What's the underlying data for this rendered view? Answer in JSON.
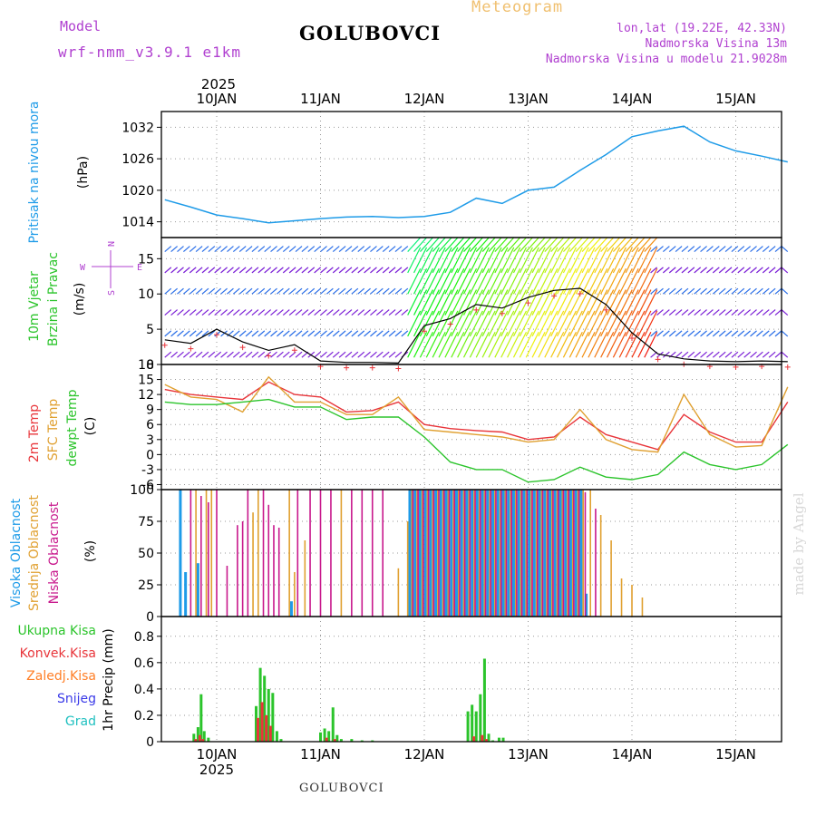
{
  "header": {
    "model_label": "Model",
    "model_name": "wrf-nmm_v3.9.1 e1km",
    "app_title": "Meteogram",
    "station": "GOLUBOVCI",
    "coords": "lon,lat (19.22E, 42.33N)",
    "elevation": "Nadmorska Visina 13m",
    "model_elevation": "Nadmorska Visina u modelu 21.9028m",
    "watermark": "made by Angel"
  },
  "colors": {
    "pressure": "#1e9be8",
    "temp2m": "#e8353a",
    "sfc": "#e0a030",
    "dewpt": "#2bc42b",
    "cloud_high": "#1e9be8",
    "cloud_mid": "#e0a030",
    "cloud_low": "#c8188c",
    "precip_total": "#2bc42b",
    "precip_conv": "#e8353a",
    "precip_frz": "#ff7f27",
    "precip_snow": "#3a3ae8",
    "precip_grad": "#20c0c0",
    "wind_label": "#2bc42b",
    "legend_purple": "#b040d0"
  },
  "dates": {
    "year": "2025",
    "labels": [
      "10JAN",
      "11JAN",
      "12JAN",
      "13JAN",
      "14JAN",
      "15JAN"
    ]
  },
  "compass": {
    "n": "N",
    "w": "W",
    "e": "E",
    "s": "S"
  },
  "chart_data": [
    {
      "id": "pressure",
      "type": "line",
      "label_title": "Pritisak na nivou mora",
      "unit": "(hPa)",
      "ylim": [
        1011,
        1035
      ],
      "yticks": [
        1014,
        1020,
        1026,
        1032
      ],
      "x_unit": "days from 10JAN 00UTC",
      "series": [
        {
          "x": [
            -0.5,
            -0.25,
            0,
            0.25,
            0.5,
            0.75,
            1,
            1.25,
            1.5,
            1.75,
            2,
            2.25,
            2.5,
            2.75,
            3,
            3.25,
            3.5,
            3.75,
            4,
            4.25,
            4.5,
            4.75,
            5,
            5.25,
            5.5
          ],
          "values": [
            1018.2,
            1016.8,
            1015.3,
            1014.6,
            1013.8,
            1014.2,
            1014.6,
            1014.9,
            1015.0,
            1014.8,
            1015.0,
            1015.8,
            1018.5,
            1017.5,
            1020.0,
            1020.6,
            1023.8,
            1026.8,
            1030.2,
            1031.3,
            1032.2,
            1029.2,
            1027.5,
            1026.5,
            1025.4
          ]
        }
      ]
    },
    {
      "id": "wind",
      "type": "line",
      "label_title": "10m Vjetar",
      "label_sub": "Brzina i Pravac",
      "unit": "(m/s)",
      "ylim": [
        0,
        18
      ],
      "yticks": [
        0,
        5,
        10,
        15
      ],
      "series": [
        {
          "x": [
            -0.5,
            -0.25,
            0,
            0.25,
            0.5,
            0.75,
            1,
            1.25,
            1.5,
            1.75,
            2,
            2.25,
            2.5,
            2.75,
            3,
            3.25,
            3.5,
            3.75,
            4,
            4.25,
            4.5,
            4.75,
            5,
            5.25,
            5.5
          ],
          "values": [
            3.5,
            3.0,
            5.0,
            3.2,
            2.0,
            2.8,
            0.5,
            0.3,
            0.3,
            0.2,
            5.5,
            6.5,
            8.5,
            8.0,
            9.5,
            10.5,
            10.8,
            8.5,
            4.5,
            1.5,
            0.8,
            0.5,
            0.4,
            0.5,
            0.4
          ]
        }
      ]
    },
    {
      "id": "temperature",
      "type": "line",
      "labels": [
        "2m Temp",
        "SFC Temp",
        "dewpt Temp"
      ],
      "unit": "(C)",
      "ylim": [
        -7,
        18
      ],
      "yticks": [
        -6,
        -3,
        0,
        3,
        6,
        9,
        12,
        15,
        18
      ],
      "x": [
        -0.5,
        -0.25,
        0,
        0.25,
        0.5,
        0.75,
        1,
        1.25,
        1.5,
        1.75,
        2,
        2.25,
        2.5,
        2.75,
        3,
        3.25,
        3.5,
        3.75,
        4,
        4.25,
        4.5,
        4.75,
        5,
        5.25,
        5.5
      ],
      "series": [
        {
          "name": "2m Temp",
          "values": [
            13.0,
            12.0,
            11.5,
            11.0,
            14.5,
            12.0,
            11.5,
            8.5,
            8.8,
            10.5,
            6.0,
            5.2,
            4.8,
            4.5,
            3.0,
            3.5,
            7.5,
            4.0,
            2.5,
            1.0,
            8.0,
            4.5,
            2.5,
            2.5,
            10.5
          ]
        },
        {
          "name": "SFC Temp",
          "values": [
            14.0,
            11.5,
            11.0,
            8.5,
            15.5,
            10.5,
            10.5,
            8.0,
            8.0,
            11.5,
            5.0,
            4.5,
            4.0,
            3.5,
            2.5,
            3.0,
            9.0,
            3.0,
            1.0,
            0.5,
            12.0,
            4.0,
            1.5,
            1.8,
            13.5
          ]
        },
        {
          "name": "dewpt Temp",
          "values": [
            10.5,
            10.0,
            10.0,
            10.5,
            11.0,
            9.5,
            9.5,
            7.0,
            7.5,
            7.5,
            3.5,
            -1.5,
            -3.0,
            -3.0,
            -5.5,
            -5.0,
            -2.5,
            -4.5,
            -5.0,
            -4.0,
            0.5,
            -2.0,
            -3.0,
            -2.0,
            2.0
          ]
        }
      ]
    },
    {
      "id": "clouds",
      "type": "bar",
      "labels": [
        "Visoka Oblacnost",
        "Srednja Oblacnost",
        "Niska Oblacnost"
      ],
      "unit": "(%)",
      "ylim": [
        0,
        100
      ],
      "yticks": [
        0,
        25,
        50,
        75,
        100
      ],
      "series": [
        {
          "name": "Visoka Oblacnost",
          "x": [
            -0.35,
            -0.3,
            -0.18,
            0.72,
            1.86,
            1.91,
            1.96,
            2.01,
            2.06,
            2.11,
            2.16,
            2.21,
            2.26,
            2.31,
            2.36,
            2.41,
            2.46,
            2.51,
            2.56,
            2.61,
            2.66,
            2.71,
            2.76,
            2.81,
            2.86,
            2.91,
            2.96,
            3.01,
            3.06,
            3.11,
            3.16,
            3.21,
            3.26,
            3.31,
            3.36,
            3.41,
            3.46,
            3.51,
            3.56
          ],
          "values": [
            100,
            35,
            42,
            12,
            100,
            100,
            100,
            100,
            100,
            100,
            100,
            100,
            100,
            100,
            100,
            100,
            100,
            100,
            100,
            100,
            100,
            100,
            100,
            100,
            100,
            100,
            100,
            100,
            100,
            100,
            100,
            100,
            100,
            100,
            100,
            100,
            100,
            100,
            18
          ]
        },
        {
          "name": "Srednja Oblacnost",
          "x": [
            -0.2,
            -0.1,
            -0.05,
            0.35,
            0.4,
            0.7,
            0.75,
            0.85,
            1.2,
            1.75,
            1.84,
            1.88,
            1.93,
            1.98,
            2.03,
            2.08,
            2.13,
            2.18,
            2.23,
            2.28,
            2.33,
            2.38,
            2.43,
            2.48,
            2.53,
            2.58,
            2.63,
            2.68,
            2.73,
            2.78,
            2.83,
            2.88,
            2.93,
            2.98,
            3.03,
            3.08,
            3.13,
            3.18,
            3.23,
            3.28,
            3.33,
            3.38,
            3.43,
            3.48,
            3.53,
            3.6,
            3.7,
            3.8,
            3.9,
            4.0,
            4.1
          ],
          "values": [
            100,
            100,
            100,
            82,
            100,
            100,
            35,
            60,
            100,
            38,
            75,
            100,
            100,
            100,
            100,
            100,
            100,
            100,
            100,
            100,
            100,
            100,
            100,
            100,
            100,
            100,
            100,
            100,
            100,
            100,
            100,
            100,
            100,
            100,
            100,
            100,
            100,
            100,
            100,
            100,
            100,
            100,
            100,
            100,
            100,
            100,
            80,
            60,
            30,
            25,
            15
          ]
        },
        {
          "name": "Niska Oblacnost",
          "x": [
            -0.25,
            -0.15,
            -0.08,
            0.0,
            0.1,
            0.2,
            0.25,
            0.3,
            0.45,
            0.5,
            0.55,
            0.6,
            0.78,
            0.9,
            1.0,
            1.1,
            1.3,
            1.4,
            1.5,
            1.6,
            1.89,
            1.94,
            1.99,
            2.04,
            2.09,
            2.14,
            2.19,
            2.24,
            2.29,
            2.34,
            2.39,
            2.44,
            2.49,
            2.54,
            2.59,
            2.64,
            2.69,
            2.74,
            2.79,
            2.84,
            2.89,
            2.94,
            2.99,
            3.04,
            3.09,
            3.14,
            3.19,
            3.24,
            3.29,
            3.34,
            3.39,
            3.44,
            3.49,
            3.55,
            3.65
          ],
          "values": [
            100,
            95,
            90,
            100,
            40,
            72,
            75,
            100,
            100,
            88,
            72,
            70,
            100,
            100,
            100,
            100,
            100,
            100,
            100,
            100,
            100,
            100,
            100,
            100,
            100,
            100,
            100,
            100,
            100,
            100,
            100,
            100,
            100,
            100,
            100,
            100,
            100,
            100,
            100,
            100,
            100,
            100,
            100,
            100,
            100,
            100,
            100,
            100,
            100,
            100,
            100,
            100,
            100,
            98,
            85
          ]
        }
      ]
    },
    {
      "id": "precip",
      "type": "bar",
      "labels": [
        "Ukupna Kisa",
        "Konvek.Kisa",
        "Zaledj.Kisa",
        "Snijeg",
        "Grad"
      ],
      "unit": "1hr Precip (mm)",
      "ylim": [
        0,
        0.95
      ],
      "yticks": [
        0,
        0.2,
        0.4,
        0.6,
        0.8
      ],
      "series": [
        {
          "name": "Ukupna Kisa",
          "x": [
            -0.22,
            -0.18,
            -0.15,
            -0.12,
            -0.08,
            0.38,
            0.42,
            0.46,
            0.5,
            0.54,
            0.58,
            0.62,
            1.0,
            1.04,
            1.08,
            1.12,
            1.16,
            1.2,
            1.3,
            1.4,
            1.5,
            2.42,
            2.46,
            2.5,
            2.54,
            2.58,
            2.62,
            2.66,
            2.72,
            2.76
          ],
          "values": [
            0.06,
            0.11,
            0.36,
            0.08,
            0.03,
            0.27,
            0.56,
            0.5,
            0.4,
            0.37,
            0.08,
            0.02,
            0.07,
            0.1,
            0.08,
            0.26,
            0.05,
            0.02,
            0.02,
            0.01,
            0.01,
            0.23,
            0.28,
            0.23,
            0.36,
            0.63,
            0.06,
            0.01,
            0.03,
            0.03
          ]
        },
        {
          "name": "Konvek.Kisa",
          "x": [
            -0.22,
            -0.18,
            -0.15,
            0.38,
            0.42,
            0.46,
            0.5,
            1.04,
            1.12,
            2.46,
            2.54,
            2.58
          ],
          "values": [
            0.02,
            0.05,
            0.02,
            0.18,
            0.3,
            0.2,
            0.12,
            0.03,
            0.02,
            0.04,
            0.05,
            0.02
          ]
        }
      ]
    }
  ]
}
